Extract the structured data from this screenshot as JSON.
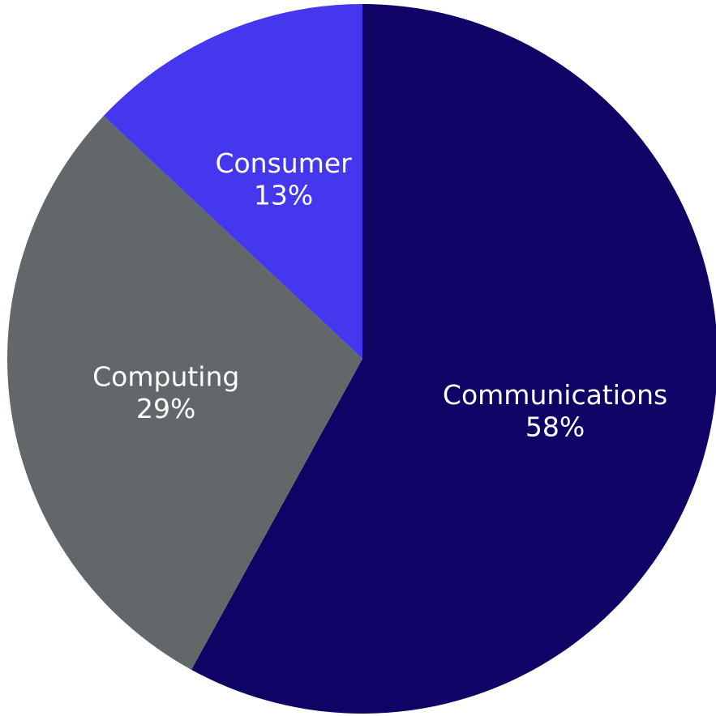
{
  "chart_data": {
    "type": "pie",
    "title": "",
    "start_angle_deg": 0,
    "direction": "clockwise",
    "slices": [
      {
        "name": "Communications",
        "value": 58,
        "value_label": "58%",
        "color": "#0f0466"
      },
      {
        "name": "Computing",
        "value": 29,
        "value_label": "29%",
        "color": "#626869"
      },
      {
        "name": "Consumer",
        "value": 13,
        "value_label": "13%",
        "color": "#4437ee"
      }
    ]
  }
}
